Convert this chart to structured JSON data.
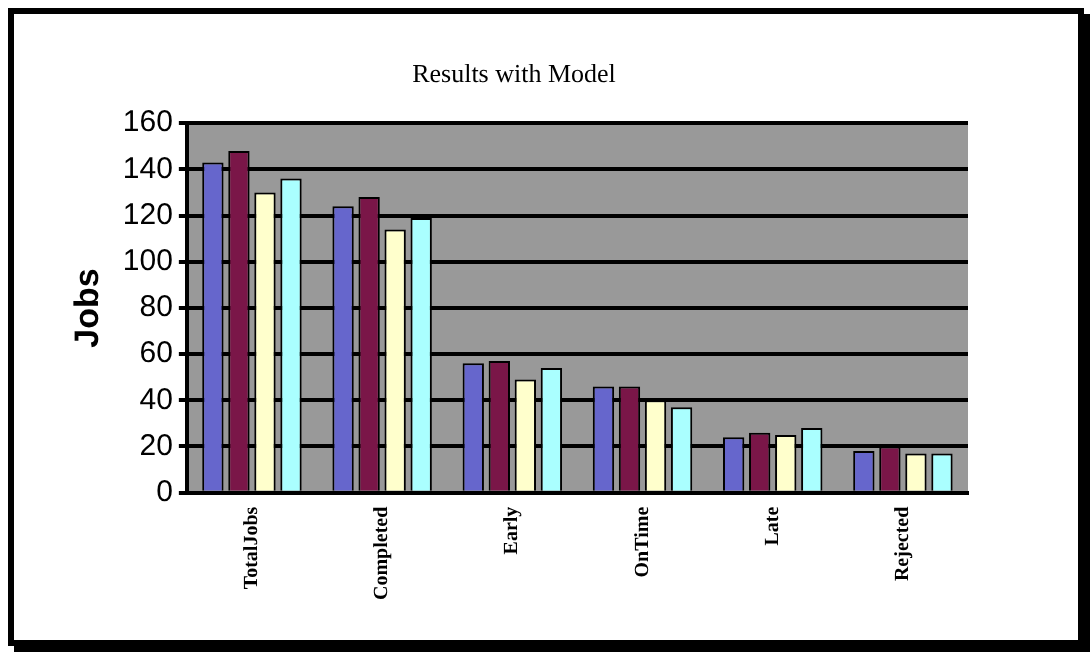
{
  "chart_data": {
    "type": "bar",
    "title": "Results with Model",
    "ylabel": "Jobs",
    "categories": [
      "TotalJobs",
      "Completed",
      "Early",
      "OnTime",
      "Late",
      "Rejected"
    ],
    "series": [
      {
        "color": "#6666cc",
        "values": [
          143,
          124,
          56,
          46,
          24,
          18
        ]
      },
      {
        "color": "#7a1648",
        "values": [
          148,
          128,
          57,
          46,
          26,
          20
        ]
      },
      {
        "color": "#ffffcc",
        "values": [
          130,
          114,
          49,
          40,
          25,
          17
        ]
      },
      {
        "color": "#aaffff",
        "values": [
          136,
          119,
          54,
          37,
          28,
          17
        ]
      }
    ],
    "ylim": [
      0,
      160
    ],
    "yticks": [
      0,
      20,
      40,
      60,
      80,
      100,
      120,
      140,
      160
    ],
    "grid": "y",
    "legend": false
  }
}
